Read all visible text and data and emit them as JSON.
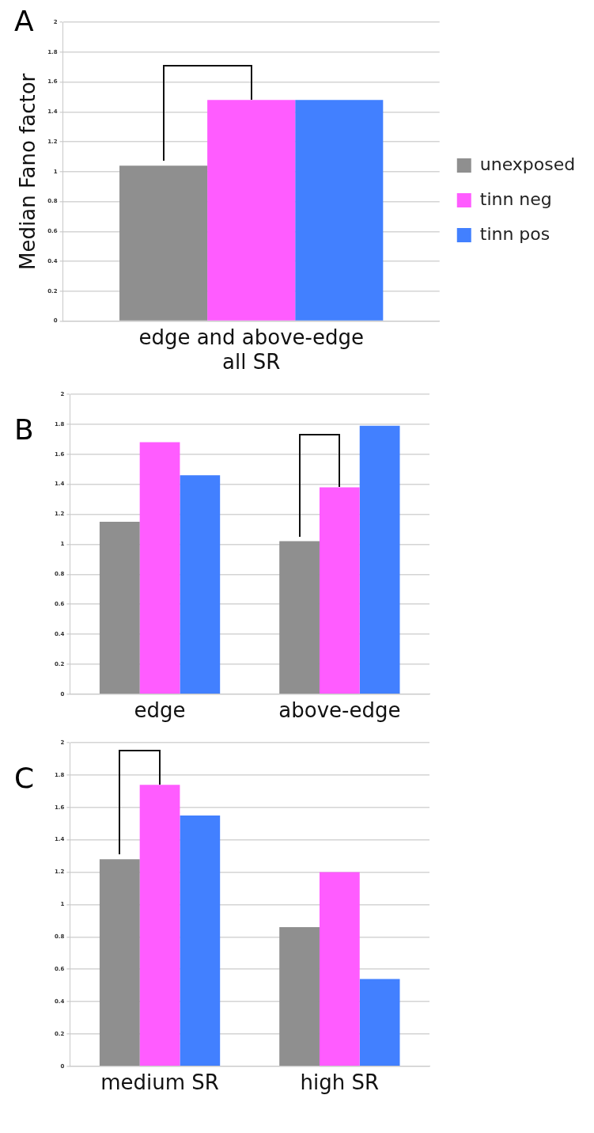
{
  "chart_data": [
    {
      "type": "bar",
      "title": "A",
      "ylabel": "Median Fano factor",
      "categories": [
        "edge and above-edge\nall SR"
      ],
      "series": [
        {
          "name": "unexposed",
          "color": "#8f8f8f",
          "values": [
            1.04
          ]
        },
        {
          "name": "tinn neg",
          "color": "#ff5cff",
          "values": [
            1.48
          ]
        },
        {
          "name": "tinn pos",
          "color": "#4280ff",
          "values": [
            1.48
          ]
        }
      ],
      "ylim": [
        0,
        2
      ],
      "yticks": [
        0,
        0.2,
        0.4,
        0.6,
        0.8,
        1,
        1.2,
        1.4,
        1.6,
        1.8,
        2
      ],
      "grid": "y",
      "legend": "right"
    },
    {
      "type": "bar",
      "title": "B",
      "categories": [
        "edge",
        "above-edge"
      ],
      "series": [
        {
          "color": "#8f8f8f",
          "values": [
            1.15,
            1.02
          ]
        },
        {
          "color": "#ff5cff",
          "values": [
            1.68,
            1.38
          ]
        },
        {
          "color": "#4280ff",
          "values": [
            1.46,
            1.79
          ]
        }
      ],
      "ylim": [
        0,
        2
      ],
      "yticks": [
        0,
        0.2,
        0.4,
        0.6,
        0.8,
        1,
        1.2,
        1.4,
        1.6,
        1.8,
        2
      ],
      "grid": "y"
    },
    {
      "type": "bar",
      "title": "C",
      "categories": [
        "medium SR",
        "high SR"
      ],
      "series": [
        {
          "color": "#8f8f8f",
          "values": [
            1.28,
            0.86
          ]
        },
        {
          "color": "#ff5cff",
          "values": [
            1.74,
            1.2
          ]
        },
        {
          "color": "#4280ff",
          "values": [
            1.55,
            0.54
          ]
        }
      ],
      "ylim": [
        0,
        2
      ],
      "yticks": [
        0,
        0.2,
        0.4,
        0.6,
        0.8,
        1,
        1.2,
        1.4,
        1.6,
        1.8,
        2
      ],
      "grid": "y"
    }
  ]
}
